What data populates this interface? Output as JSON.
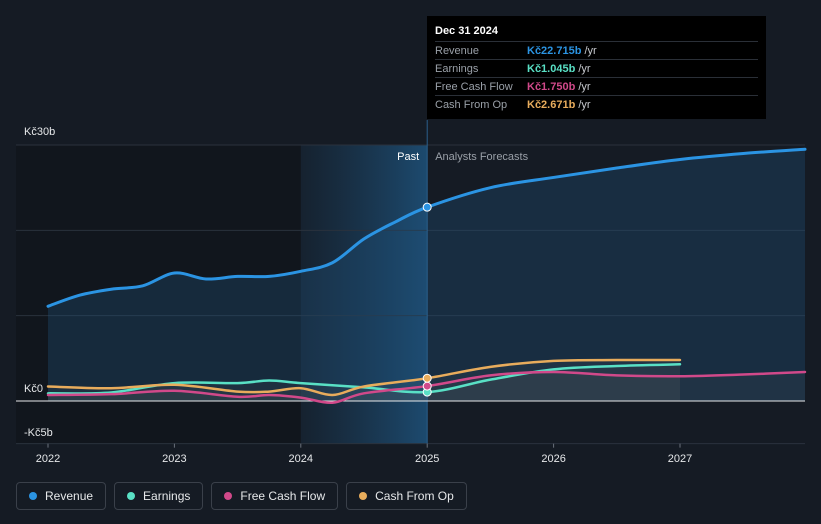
{
  "chart_data": {
    "type": "line",
    "title": "",
    "xlabel": "",
    "ylabel": "",
    "x_ticks": [
      "2022",
      "2023",
      "2024",
      "2025",
      "2026",
      "2027"
    ],
    "y_ticks": [
      {
        "value": 30,
        "label": "Kč30b"
      },
      {
        "value": 0,
        "label": "Kč0"
      },
      {
        "value": -5,
        "label": "-Kč5b"
      }
    ],
    "xlim": [
      2021.75,
      2028.0
    ],
    "ylim": [
      -5,
      30
    ],
    "past_label": "Past",
    "forecast_label": "Analysts Forecasts",
    "divider_x": 2025.0,
    "series": [
      {
        "name": "Revenue",
        "color": "#2b94e3",
        "points": [
          [
            2022.0,
            11.1
          ],
          [
            2022.25,
            12.4
          ],
          [
            2022.5,
            13.1
          ],
          [
            2022.75,
            13.5
          ],
          [
            2023.0,
            15.0
          ],
          [
            2023.25,
            14.3
          ],
          [
            2023.5,
            14.6
          ],
          [
            2023.75,
            14.6
          ],
          [
            2024.0,
            15.2
          ],
          [
            2024.25,
            16.2
          ],
          [
            2024.5,
            19.0
          ],
          [
            2024.75,
            21.0
          ],
          [
            2025.0,
            22.715
          ],
          [
            2025.5,
            25.0
          ],
          [
            2026.0,
            26.2
          ],
          [
            2026.5,
            27.3
          ],
          [
            2027.0,
            28.3
          ],
          [
            2027.5,
            29.0
          ],
          [
            2028.0,
            29.5
          ]
        ]
      },
      {
        "name": "Earnings",
        "color": "#59e0c5",
        "points": [
          [
            2022.0,
            0.9
          ],
          [
            2022.5,
            1.0
          ],
          [
            2023.0,
            2.1
          ],
          [
            2023.5,
            2.1
          ],
          [
            2023.75,
            2.4
          ],
          [
            2024.0,
            2.1
          ],
          [
            2024.5,
            1.6
          ],
          [
            2025.0,
            1.045
          ],
          [
            2025.5,
            2.5
          ],
          [
            2026.0,
            3.7
          ],
          [
            2026.5,
            4.1
          ],
          [
            2027.0,
            4.3
          ]
        ]
      },
      {
        "name": "Free Cash Flow",
        "color": "#d1498a",
        "points": [
          [
            2022.0,
            0.7
          ],
          [
            2022.5,
            0.8
          ],
          [
            2023.0,
            1.2
          ],
          [
            2023.5,
            0.5
          ],
          [
            2023.75,
            0.7
          ],
          [
            2024.0,
            0.4
          ],
          [
            2024.25,
            -0.2
          ],
          [
            2024.5,
            0.9
          ],
          [
            2025.0,
            1.75
          ],
          [
            2025.5,
            3.0
          ],
          [
            2026.0,
            3.4
          ],
          [
            2026.5,
            3.0
          ],
          [
            2027.0,
            2.9
          ],
          [
            2027.5,
            3.1
          ],
          [
            2028.0,
            3.4
          ]
        ]
      },
      {
        "name": "Cash From Op",
        "color": "#e8ac5c",
        "points": [
          [
            2022.0,
            1.7
          ],
          [
            2022.5,
            1.5
          ],
          [
            2023.0,
            1.9
          ],
          [
            2023.5,
            1.1
          ],
          [
            2023.75,
            1.1
          ],
          [
            2024.0,
            1.5
          ],
          [
            2024.25,
            0.7
          ],
          [
            2024.5,
            1.7
          ],
          [
            2025.0,
            2.671
          ],
          [
            2025.5,
            4.0
          ],
          [
            2026.0,
            4.7
          ],
          [
            2026.5,
            4.8
          ],
          [
            2027.0,
            4.8
          ]
        ]
      }
    ]
  },
  "tooltip": {
    "date": "Dec 31 2024",
    "rows": [
      {
        "label": "Revenue",
        "value": "Kč22.715b",
        "unit": "/yr",
        "color": "#2b94e3"
      },
      {
        "label": "Earnings",
        "value": "Kč1.045b",
        "unit": "/yr",
        "color": "#59e0c5"
      },
      {
        "label": "Free Cash Flow",
        "value": "Kč1.750b",
        "unit": "/yr",
        "color": "#d1498a"
      },
      {
        "label": "Cash From Op",
        "value": "Kč2.671b",
        "unit": "/yr",
        "color": "#e8ac5c"
      }
    ]
  },
  "legend": [
    {
      "label": "Revenue",
      "color": "#2b94e3"
    },
    {
      "label": "Earnings",
      "color": "#59e0c5"
    },
    {
      "label": "Free Cash Flow",
      "color": "#d1498a"
    },
    {
      "label": "Cash From Op",
      "color": "#e8ac5c"
    }
  ]
}
